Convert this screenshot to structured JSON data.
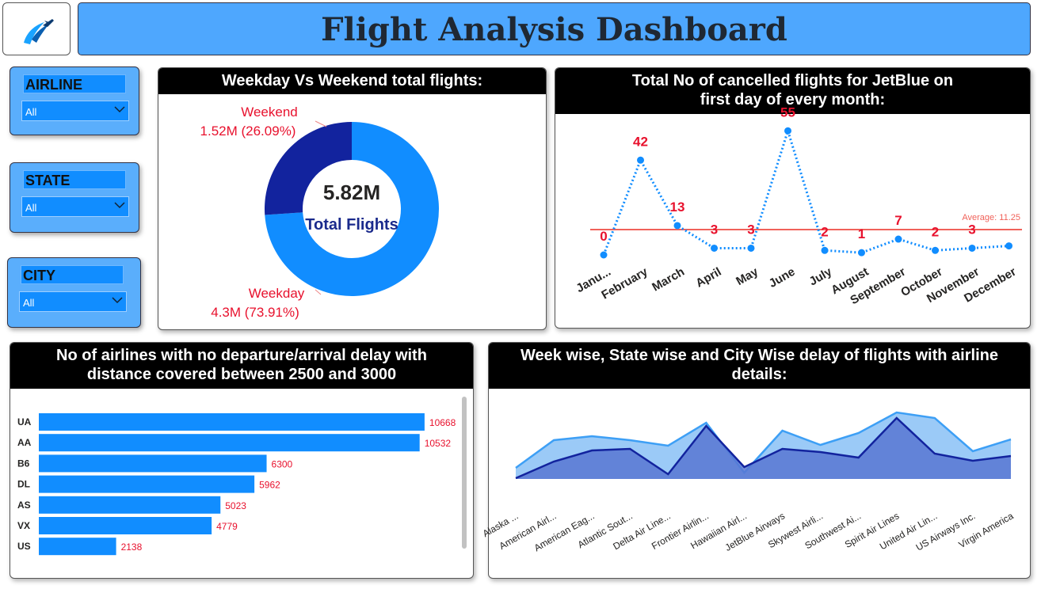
{
  "header": {
    "title": "Flight Analysis Dashboard"
  },
  "filters": [
    {
      "label": "AIRLINE",
      "value": "All"
    },
    {
      "label": "STATE",
      "value": "All"
    },
    {
      "label": "CITY",
      "value": "All"
    }
  ],
  "chart_data": [
    {
      "type": "donut",
      "title": "Weekday Vs Weekend total flights:",
      "center_value": "5.82M",
      "center_label": "Total Flights",
      "categories": [
        "Weekend",
        "Weekday"
      ],
      "values": [
        26.09,
        73.91
      ],
      "value_labels": [
        "1.52M (26.09%)",
        "4.3M (73.91%)"
      ],
      "colors": [
        "#12239e",
        "#118dff"
      ]
    },
    {
      "type": "line",
      "title": "Total No of cancelled flights for JetBlue on first day of every month:",
      "categories": [
        "Janu...",
        "February",
        "March",
        "April",
        "May",
        "June",
        "July",
        "August",
        "September",
        "October",
        "November",
        "December"
      ],
      "values": [
        0,
        42,
        13,
        3,
        3,
        55,
        2,
        1,
        7,
        2,
        3,
        4
      ],
      "value_labels": [
        "0",
        "42",
        "13",
        "3",
        "3",
        "55",
        "2",
        "1",
        "7",
        "2",
        "3",
        null
      ],
      "color": "#118dff",
      "ylim": [
        0,
        60
      ],
      "average": 11.25,
      "average_label": "Average: 11.25",
      "average_color": "#f0625a"
    },
    {
      "type": "hbar",
      "title": "No of airlines with no departure/arrival delay with distance covered between 2500 and 3000",
      "categories": [
        "UA",
        "AA",
        "B6",
        "DL",
        "AS",
        "VX",
        "US"
      ],
      "values": [
        10668,
        10532,
        6300,
        5962,
        5023,
        4779,
        2138
      ],
      "color": "#118dff",
      "xlim": [
        0,
        11700
      ]
    },
    {
      "type": "area",
      "title": "Week wise, State wise and City Wise delay of flights with airline details:",
      "categories": [
        "Alaska ...",
        "American Airl...",
        "American Eag...",
        "Atlantic Sout...",
        "Delta Air Line...",
        "Frontier Airlin...",
        "Hawaiian Airl...",
        "JetBlue Airways",
        "Skywest Airli...",
        "Southwest Ai...",
        "Spirit Air Lines",
        "United Air Lin...",
        "US Airways Inc.",
        "Virgin America"
      ],
      "series": [
        {
          "color": "#3d9ff5",
          "values": [
            14,
            49,
            54,
            49,
            42,
            71,
            8,
            61,
            43,
            58,
            84,
            77,
            35,
            50
          ]
        },
        {
          "color": "#12239e",
          "values": [
            1,
            22,
            36,
            38,
            6,
            67,
            15,
            38,
            34,
            27,
            77,
            32,
            23,
            29
          ]
        }
      ],
      "ylim": [
        0,
        90
      ]
    }
  ]
}
